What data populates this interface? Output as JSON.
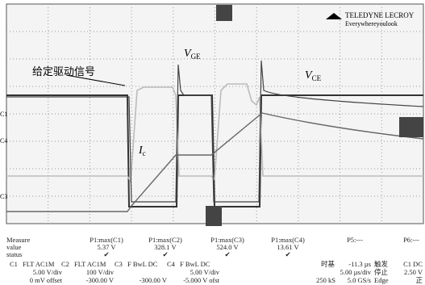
{
  "logo": {
    "brand": "TELEDYNE LECROY",
    "tagline": "Everywhereyoulook"
  },
  "screen": {
    "annotations": {
      "drive": "给定驱动信号",
      "vge": {
        "main": "V",
        "sub": "GE"
      },
      "vce": {
        "main": "V",
        "sub": "CE"
      },
      "ic": {
        "main": "I",
        "sub": "c"
      }
    },
    "channel_markers": [
      "C1",
      "C4",
      "C3"
    ]
  },
  "measure": {
    "row_labels": [
      "Measure",
      "value",
      "status"
    ],
    "columns": [
      {
        "name": "P1:max(C1)",
        "value": "5.37 V",
        "status": "✔"
      },
      {
        "name": "P1:max(C2)",
        "value": "328.1 V",
        "status": "✔"
      },
      {
        "name": "P1:max(C3)",
        "value": "524.0 V",
        "status": "✔"
      },
      {
        "name": "P1:max(C4)",
        "value": "13.61 V",
        "status": "✔"
      },
      {
        "name": "P5:---"
      },
      {
        "name": "P6:---"
      }
    ]
  },
  "channels": [
    {
      "id": "C1",
      "coupling": "FLT AC1M",
      "scale": "5.00 V/div",
      "offset": "0 mV offset"
    },
    {
      "id": "C2",
      "coupling": "FLT AC1M",
      "scale": "100 V/div",
      "offset": "-300.00 V"
    },
    {
      "id": "C3",
      "coupling": "F BwL DC",
      "offset": "-300.00 V"
    },
    {
      "id": "C4",
      "coupling": "F BwL DC",
      "scale": "5.00 V/div",
      "offset": "-5.000 V ofst"
    }
  ],
  "timebase": {
    "label": "时基",
    "delay": "-11.3 µs",
    "scale": "5.00 µs/div",
    "samples": "250 kS",
    "rate": "5.0 GS/s"
  },
  "trigger": {
    "label": "触发",
    "state": "停止",
    "type": "Edge",
    "source": "C1 DC",
    "level": "2.50 V",
    "slope": "正"
  }
}
